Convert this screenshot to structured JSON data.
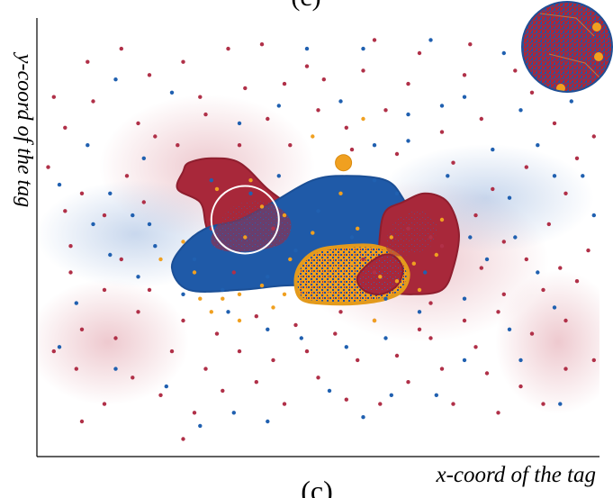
{
  "figure": {
    "panel_label": "(c)",
    "top_label_fragment": "(c)"
  },
  "chart_data": {
    "type": "scatter",
    "title": "",
    "xlabel": "x-coord of the tag",
    "ylabel": "y-coord of the tag",
    "xlim": [
      0,
      100
    ],
    "ylim": [
      0,
      100
    ],
    "grid": false,
    "legend": "none",
    "colors": {
      "red": "#a8283a",
      "blue": "#1f5aa8",
      "orange": "#f0a020",
      "outline_red": "#8e1e2e",
      "outline_blue": "#1b4f96"
    },
    "regions": [
      {
        "name": "red-region-left",
        "color": "red",
        "points": [
          [
            27,
            67
          ],
          [
            31,
            68
          ],
          [
            36,
            67
          ],
          [
            41,
            61
          ],
          [
            45,
            57
          ],
          [
            47,
            53
          ],
          [
            46,
            49
          ],
          [
            42,
            47
          ],
          [
            38,
            46
          ],
          [
            33,
            46
          ],
          [
            31,
            48
          ],
          [
            30,
            53
          ],
          [
            29,
            58
          ],
          [
            25,
            61
          ],
          [
            26,
            65
          ]
        ]
      },
      {
        "name": "blue-region",
        "color": "blue",
        "points": [
          [
            24,
            43
          ],
          [
            26,
            48
          ],
          [
            30,
            52
          ],
          [
            36,
            54
          ],
          [
            42,
            58
          ],
          [
            49,
            63
          ],
          [
            55,
            64
          ],
          [
            62,
            63
          ],
          [
            65,
            59
          ],
          [
            67,
            53
          ],
          [
            68,
            45
          ],
          [
            64,
            40
          ],
          [
            57,
            39
          ],
          [
            51,
            39
          ],
          [
            44,
            39
          ],
          [
            36,
            38
          ],
          [
            27,
            38
          ]
        ]
      },
      {
        "name": "red-region-right",
        "color": "red",
        "points": [
          [
            61,
            51
          ],
          [
            62,
            56
          ],
          [
            65,
            58
          ],
          [
            69,
            60
          ],
          [
            73,
            58
          ],
          [
            75,
            51
          ],
          [
            74,
            43
          ],
          [
            72,
            38
          ],
          [
            67,
            37
          ],
          [
            63,
            38
          ],
          [
            61,
            44
          ]
        ]
      },
      {
        "name": "orange-region",
        "color": "orange",
        "points": [
          [
            46,
            40
          ],
          [
            47,
            44
          ],
          [
            50,
            47
          ],
          [
            55,
            48
          ],
          [
            60,
            48
          ],
          [
            64,
            46
          ],
          [
            66,
            42
          ],
          [
            65,
            38
          ],
          [
            62,
            36
          ],
          [
            57,
            35
          ],
          [
            51,
            35
          ],
          [
            47,
            36
          ]
        ]
      },
      {
        "name": "red-overlap-small",
        "color": "red",
        "points": [
          [
            57,
            41
          ],
          [
            60,
            45
          ],
          [
            63,
            46
          ],
          [
            65,
            43
          ],
          [
            64,
            39
          ],
          [
            61,
            37
          ],
          [
            58,
            38
          ]
        ]
      }
    ],
    "circle_highlight": {
      "cx": 37,
      "cy": 54,
      "r": 6
    },
    "outlier_dot": {
      "x": 54.5,
      "y": 67,
      "color": "orange"
    },
    "series": [
      {
        "name": "red",
        "color": "#b03048",
        "points": [
          [
            34,
            93
          ],
          [
            9,
            90
          ],
          [
            26,
            90
          ],
          [
            20,
            87
          ],
          [
            44,
            85
          ],
          [
            3,
            82
          ],
          [
            10,
            81
          ],
          [
            18,
            76
          ],
          [
            5,
            75
          ],
          [
            21,
            73
          ],
          [
            55,
            75
          ],
          [
            72,
            74
          ],
          [
            79,
            77
          ],
          [
            92,
            76
          ],
          [
            99,
            73
          ],
          [
            96,
            68
          ],
          [
            87,
            66
          ],
          [
            94,
            60
          ],
          [
            91,
            53
          ],
          [
            98,
            47
          ],
          [
            96,
            40
          ],
          [
            90,
            38
          ],
          [
            82,
            33
          ],
          [
            94,
            31
          ],
          [
            88,
            28
          ],
          [
            99,
            22
          ],
          [
            94,
            20
          ],
          [
            86,
            16
          ],
          [
            78,
            25
          ],
          [
            72,
            20
          ],
          [
            66,
            17
          ],
          [
            61,
            12
          ],
          [
            55,
            13
          ],
          [
            50,
            18
          ],
          [
            44,
            12
          ],
          [
            39,
            17
          ],
          [
            33,
            15
          ],
          [
            28,
            10
          ],
          [
            22,
            14
          ],
          [
            17,
            18
          ],
          [
            12,
            12
          ],
          [
            7,
            20
          ],
          [
            3,
            24
          ],
          [
            8,
            29
          ],
          [
            14,
            27
          ],
          [
            18,
            33
          ],
          [
            12,
            38
          ],
          [
            6,
            42
          ],
          [
            15,
            45
          ],
          [
            6,
            48
          ],
          [
            12,
            55
          ],
          [
            19,
            58
          ],
          [
            16,
            64
          ],
          [
            8,
            60
          ],
          [
            29,
            82
          ],
          [
            37,
            84
          ],
          [
            48,
            89
          ],
          [
            58,
            88
          ],
          [
            66,
            85
          ],
          [
            76,
            87
          ],
          [
            85,
            88
          ],
          [
            62,
            79
          ],
          [
            50,
            79
          ],
          [
            41,
            77
          ],
          [
            30,
            78
          ],
          [
            25,
            71
          ],
          [
            36,
            71
          ],
          [
            45,
            71
          ],
          [
            56,
            70
          ],
          [
            64,
            69
          ],
          [
            74,
            67
          ],
          [
            81,
            61
          ],
          [
            78,
            55
          ],
          [
            83,
            49
          ],
          [
            79,
            43
          ],
          [
            83,
            37
          ],
          [
            76,
            31
          ],
          [
            68,
            29
          ],
          [
            60,
            31
          ],
          [
            53,
            28
          ],
          [
            46,
            30
          ],
          [
            39,
            32
          ],
          [
            32,
            28
          ],
          [
            26,
            31
          ],
          [
            20,
            38
          ],
          [
            24,
            24
          ],
          [
            30,
            20
          ],
          [
            36,
            24
          ],
          [
            42,
            22
          ],
          [
            48,
            24
          ],
          [
            57,
            22
          ],
          [
            64,
            23
          ],
          [
            70,
            27
          ],
          [
            80,
            19
          ],
          [
            90,
            12
          ],
          [
            82,
            10
          ],
          [
            74,
            12
          ],
          [
            26,
            4
          ],
          [
            8,
            8
          ],
          [
            2,
            66
          ],
          [
            51,
            86
          ],
          [
            68,
            92
          ],
          [
            88,
            83
          ],
          [
            97,
            90
          ],
          [
            15,
            93
          ],
          [
            40,
            94
          ],
          [
            60,
            95
          ],
          [
            77,
            94
          ],
          [
            5,
            56
          ],
          [
            93,
            43
          ],
          [
            87,
            45
          ],
          [
            70,
            35
          ],
          [
            54,
            33
          ],
          [
            35,
            42
          ],
          [
            31,
            52
          ],
          [
            40,
            57
          ],
          [
            42,
            52
          ],
          [
            66,
            52
          ],
          [
            70,
            50
          ],
          [
            72,
            48
          ],
          [
            60,
            42
          ],
          [
            58,
            45
          ]
        ]
      },
      {
        "name": "blue",
        "color": "#2060b0",
        "points": [
          [
            70,
            95
          ],
          [
            58,
            93
          ],
          [
            83,
            92
          ],
          [
            48,
            93
          ],
          [
            91,
            85
          ],
          [
            76,
            82
          ],
          [
            86,
            79
          ],
          [
            95,
            81
          ],
          [
            66,
            78
          ],
          [
            81,
            70
          ],
          [
            89,
            71
          ],
          [
            97,
            64
          ],
          [
            92,
            64
          ],
          [
            84,
            59
          ],
          [
            99,
            55
          ],
          [
            85,
            50
          ],
          [
            77,
            50
          ],
          [
            80,
            45
          ],
          [
            89,
            42
          ],
          [
            92,
            34
          ],
          [
            84,
            29
          ],
          [
            76,
            36
          ],
          [
            68,
            33
          ],
          [
            62,
            27
          ],
          [
            55,
            25
          ],
          [
            47,
            27
          ],
          [
            41,
            29
          ],
          [
            34,
            33
          ],
          [
            26,
            37
          ],
          [
            18,
            41
          ],
          [
            13,
            46
          ],
          [
            10,
            53
          ],
          [
            20,
            53
          ],
          [
            13,
            60
          ],
          [
            7,
            35
          ],
          [
            4,
            25
          ],
          [
            14,
            20
          ],
          [
            23,
            16
          ],
          [
            35,
            10
          ],
          [
            41,
            8
          ],
          [
            29,
            7
          ],
          [
            52,
            15
          ],
          [
            58,
            9
          ],
          [
            63,
            14
          ],
          [
            71,
            14
          ],
          [
            76,
            22
          ],
          [
            86,
            22
          ],
          [
            93,
            12
          ],
          [
            60,
            63
          ],
          [
            50,
            56
          ],
          [
            38,
            60
          ],
          [
            43,
            64
          ],
          [
            56,
            50
          ],
          [
            46,
            47
          ],
          [
            28,
            45
          ],
          [
            33,
            38
          ],
          [
            69,
            42
          ],
          [
            64,
            60
          ],
          [
            73,
            64
          ],
          [
            60,
            71
          ],
          [
            66,
            72
          ],
          [
            72,
            80
          ],
          [
            54,
            81
          ],
          [
            43,
            80
          ],
          [
            36,
            76
          ],
          [
            24,
            83
          ],
          [
            14,
            86
          ],
          [
            9,
            71
          ],
          [
            4,
            62
          ],
          [
            19,
            68
          ],
          [
            31,
            63
          ],
          [
            62,
            36
          ],
          [
            41,
            41
          ],
          [
            21,
            48
          ],
          [
            17,
            55
          ]
        ]
      },
      {
        "name": "orange",
        "color": "#f0a020",
        "points": [
          [
            49,
            73
          ],
          [
            58,
            77
          ],
          [
            33,
            36
          ],
          [
            36,
            37
          ],
          [
            40,
            39
          ],
          [
            44,
            37
          ],
          [
            28,
            42
          ],
          [
            22,
            45
          ],
          [
            26,
            49
          ],
          [
            53,
            43
          ],
          [
            56,
            44
          ],
          [
            61,
            41
          ],
          [
            64,
            40
          ],
          [
            67,
            44
          ],
          [
            49,
            51
          ],
          [
            44,
            55
          ],
          [
            57,
            52
          ],
          [
            40,
            57
          ],
          [
            37,
            50
          ],
          [
            71,
            46
          ],
          [
            72,
            54
          ],
          [
            68,
            38
          ],
          [
            52,
            37
          ],
          [
            48,
            38
          ],
          [
            32,
            61
          ],
          [
            38,
            63
          ],
          [
            45,
            45
          ],
          [
            31,
            33
          ],
          [
            42,
            34
          ],
          [
            29,
            36
          ],
          [
            36,
            31
          ],
          [
            60,
            31
          ],
          [
            63,
            50
          ],
          [
            54,
            60
          ]
        ]
      }
    ]
  }
}
